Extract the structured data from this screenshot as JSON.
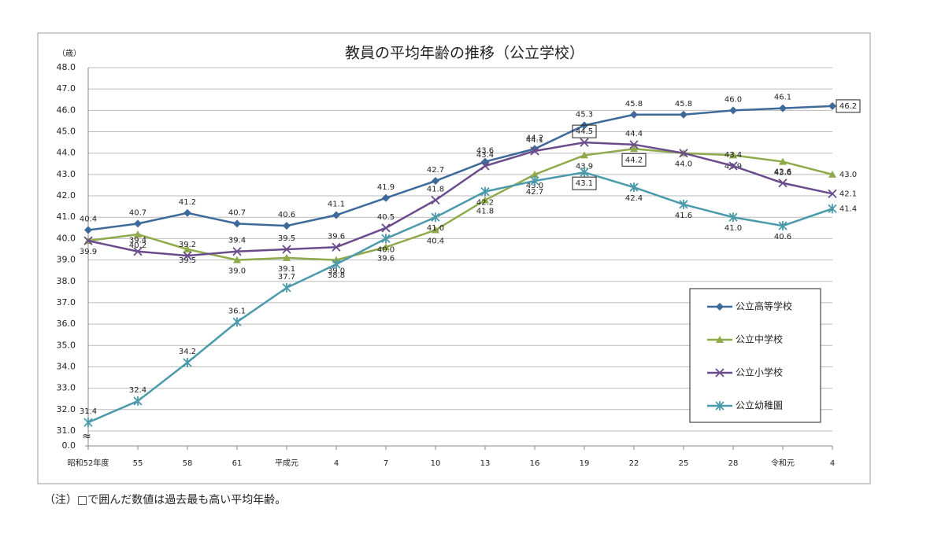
{
  "chart_data": {
    "type": "line",
    "title": "教員の平均年齢の推移（公立学校）",
    "y_unit": "（歳）",
    "footnote": "（注）□で囲んだ数値は過去最も高い平均年齢。",
    "categories": [
      "昭和52年度",
      "55",
      "58",
      "61",
      "平成元",
      "4",
      "7",
      "10",
      "13",
      "16",
      "19",
      "22",
      "25",
      "28",
      "令和元",
      "4"
    ],
    "series": [
      {
        "name": "公立高等学校",
        "color": "#3d6a9a",
        "marker": "diamond",
        "boxed": 15,
        "values": [
          40.4,
          40.7,
          41.2,
          40.7,
          40.6,
          41.1,
          41.9,
          42.7,
          43.6,
          44.2,
          45.3,
          45.8,
          45.8,
          46.0,
          46.1,
          46.2
        ],
        "value_labels": [
          "40.4",
          "40.7",
          "41.2",
          "40.7",
          "40.6",
          "41.1",
          "41.9",
          "42.7",
          "43.6",
          "44.2",
          "45.3",
          "45.8",
          "45.8",
          "46.0",
          "46.1",
          "46.2"
        ]
      },
      {
        "name": "公立中学校",
        "color": "#8faa4b",
        "marker": "triangle",
        "boxed": 11,
        "values": [
          39.9,
          40.2,
          39.5,
          39.0,
          39.1,
          39.0,
          39.6,
          40.4,
          41.8,
          43.0,
          43.9,
          44.2,
          44.0,
          43.9,
          43.6,
          43.0
        ],
        "value_labels": [
          "39.9",
          "40.2",
          "39.5",
          "39.0",
          "39.1",
          "39.0",
          "39.6",
          "40.4",
          "41.8",
          "43.0",
          "43.9",
          "44.2",
          "44.0",
          "43.9",
          "43.6",
          "43.0"
        ]
      },
      {
        "name": "公立小学校",
        "color": "#6a4c8c",
        "marker": "x",
        "boxed": 10,
        "values": [
          39.9,
          39.4,
          39.2,
          39.4,
          39.5,
          39.6,
          40.5,
          41.8,
          43.4,
          44.1,
          44.5,
          44.4,
          44.0,
          43.4,
          42.6,
          42.1
        ],
        "value_labels": [
          null,
          "39.4",
          "39.2",
          "39.4",
          "39.5",
          "39.6",
          "40.5",
          "41.8",
          "43.4",
          "44.1",
          "44.5",
          "44.4",
          null,
          "43.4",
          "42.6",
          "42.1"
        ]
      },
      {
        "name": "公立幼稚園",
        "color": "#4a9aab",
        "marker": "star",
        "boxed": 10,
        "values": [
          31.4,
          32.4,
          34.2,
          36.1,
          37.7,
          38.8,
          40.0,
          41.0,
          42.2,
          42.7,
          43.1,
          42.4,
          41.6,
          41.0,
          40.6,
          41.4
        ],
        "value_labels": [
          "31.4",
          "32.4",
          "34.2",
          "36.1",
          "37.7",
          "38.8",
          "40.0",
          "41.0",
          "42.2",
          "42.7",
          "43.1",
          "42.4",
          "41.6",
          "41.0",
          "40.6",
          "41.4"
        ]
      }
    ],
    "ylim": [
      30.3,
      48.0
    ],
    "axis_break": true,
    "yticks": [
      {
        "value": 0,
        "label": "0.0"
      },
      {
        "value": 31,
        "label": "31.0"
      },
      {
        "value": 32,
        "label": "32.0"
      },
      {
        "value": 33,
        "label": "33.0"
      },
      {
        "value": 34,
        "label": "34.0"
      },
      {
        "value": 35,
        "label": "35.0"
      },
      {
        "value": 36,
        "label": "36.0"
      },
      {
        "value": 37,
        "label": "37.0"
      },
      {
        "value": 38,
        "label": "38.0"
      },
      {
        "value": 39,
        "label": "39.0"
      },
      {
        "value": 40,
        "label": "40.0"
      },
      {
        "value": 41,
        "label": "41.0"
      },
      {
        "value": 42,
        "label": "42.0"
      },
      {
        "value": 43,
        "label": "43.0"
      },
      {
        "value": 44,
        "label": "44.0"
      },
      {
        "value": 45,
        "label": "45.0"
      },
      {
        "value": 46,
        "label": "46.0"
      },
      {
        "value": 47,
        "label": "47.0"
      },
      {
        "value": 48,
        "label": "48.0"
      }
    ],
    "grid": true,
    "legend": "lower right"
  }
}
